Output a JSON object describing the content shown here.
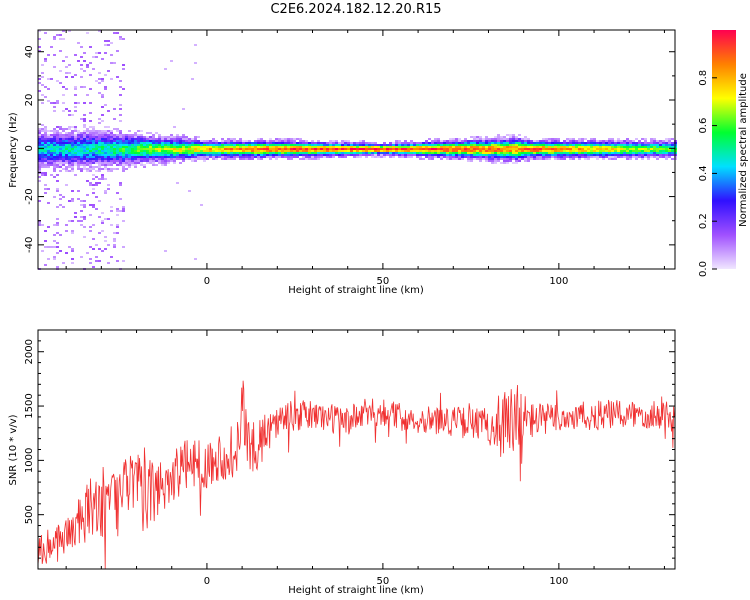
{
  "figure": {
    "title": "C2E6.2024.182.12.20.R15"
  },
  "chart_data": [
    {
      "type": "heatmap",
      "xlabel": "Height of straight line (km)",
      "ylabel": "Frequency (Hz)",
      "xlim": [
        -48,
        133
      ],
      "ylim": [
        -50,
        49
      ],
      "x_ticks": [
        0,
        50,
        100
      ],
      "y_ticks": [
        -40,
        -20,
        0,
        20,
        40
      ],
      "colorbar": {
        "label": "Normalized spectral amplitude",
        "range": [
          0.0,
          1.0
        ],
        "ticks": [
          0.0,
          0.2,
          0.4,
          0.6,
          0.8
        ],
        "colormap": [
          "#f0e6ff",
          "#a050ff",
          "#3010ff",
          "#00e0ff",
          "#00ff30",
          "#ffff00",
          "#ff8000",
          "#ff0050"
        ]
      },
      "band_profile": [
        {
          "x": -48,
          "halfwidth_hz": 6,
          "peak": 0.45
        },
        {
          "x": -30,
          "halfwidth_hz": 6,
          "peak": 0.5
        },
        {
          "x": -20,
          "halfwidth_hz": 5,
          "peak": 0.6
        },
        {
          "x": -10,
          "halfwidth_hz": 4,
          "peak": 0.7
        },
        {
          "x": 0,
          "halfwidth_hz": 3,
          "peak": 0.8
        },
        {
          "x": 15,
          "halfwidth_hz": 3,
          "peak": 0.9
        },
        {
          "x": 50,
          "halfwidth_hz": 2,
          "peak": 0.95
        },
        {
          "x": 88,
          "halfwidth_hz": 4,
          "peak": 0.85
        },
        {
          "x": 92,
          "halfwidth_hz": 3,
          "peak": 0.9
        },
        {
          "x": 133,
          "halfwidth_hz": 3,
          "peak": 0.6
        }
      ]
    },
    {
      "type": "line",
      "xlabel": "Height of straight line (km)",
      "ylabel": "SNR (10 * v/v)",
      "xlim": [
        -48,
        133
      ],
      "ylim": [
        0,
        2200
      ],
      "x_ticks": [
        0,
        50,
        100
      ],
      "y_ticks": [
        500,
        1000,
        1500,
        2000
      ],
      "color": "#f03030",
      "series": [
        {
          "x": [
            -48,
            -44,
            -40,
            -36,
            -33,
            -30,
            -27,
            -24,
            -22,
            -20,
            -18,
            -15,
            -12,
            -9,
            -6,
            -3,
            0,
            3,
            6,
            9,
            10,
            12,
            15,
            18,
            21,
            25,
            30,
            35,
            40,
            45,
            50,
            55,
            60,
            65,
            70,
            75,
            80,
            83,
            85,
            87,
            88,
            89,
            90,
            92,
            95,
            100,
            105,
            110,
            115,
            120,
            125,
            130,
            133
          ],
          "values": [
            170,
            230,
            320,
            420,
            550,
            620,
            560,
            700,
            820,
            750,
            680,
            700,
            800,
            880,
            950,
            1000,
            960,
            1030,
            1050,
            1100,
            1500,
            1100,
            1150,
            1300,
            1380,
            1400,
            1420,
            1390,
            1360,
            1430,
            1450,
            1400,
            1380,
            1370,
            1360,
            1340,
            1320,
            1300,
            1320,
            1300,
            1340,
            1300,
            1350,
            1370,
            1380,
            1390,
            1400,
            1410,
            1420,
            1420,
            1430,
            1440,
            1410
          ],
          "noise_amplitude": [
            150,
            160,
            180,
            250,
            300,
            330,
            350,
            330,
            300,
            320,
            330,
            300,
            280,
            260,
            240,
            230,
            220,
            220,
            250,
            280,
            450,
            250,
            220,
            180,
            160,
            150,
            140,
            140,
            140,
            140,
            130,
            130,
            130,
            130,
            140,
            150,
            170,
            250,
            380,
            420,
            450,
            420,
            300,
            180,
            150,
            140,
            140,
            140,
            140,
            140,
            150,
            150,
            150
          ]
        }
      ]
    }
  ]
}
